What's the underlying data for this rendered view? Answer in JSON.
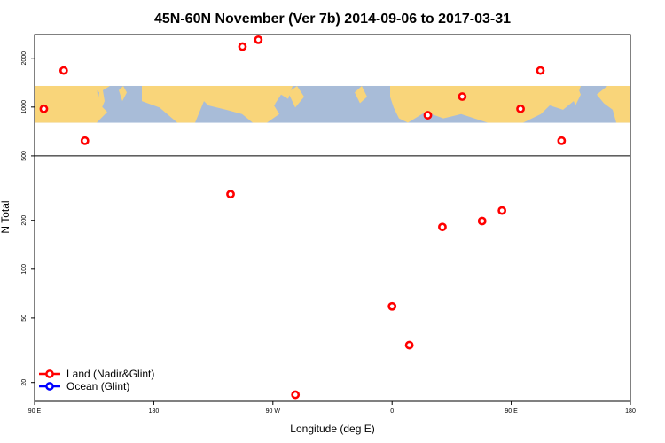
{
  "chart_data": {
    "type": "scatter",
    "title": "45N-60N November (Ver 7b)   2014-09-06 to 2017-03-31",
    "xlabel": "Longitude (deg E)",
    "ylabel": "N Total",
    "x_ticks": [
      {
        "value": 90,
        "label": "90 E"
      },
      {
        "value": 180,
        "label": "180"
      },
      {
        "value": 270,
        "label": "90 W"
      },
      {
        "value": 360,
        "label": "0"
      },
      {
        "value": 450,
        "label": "90 E"
      },
      {
        "value": 540,
        "label": "180"
      }
    ],
    "xlim": [
      90,
      540
    ],
    "y_scale": "log",
    "y_ticks": [
      20,
      50,
      100,
      200,
      500,
      1000,
      2000
    ],
    "ylim": [
      15.3,
      2800
    ],
    "map_band": {
      "ymin": 800,
      "ymax": 1350,
      "ocean_color": "#a8bcd8",
      "land_color": "#f9d57a"
    },
    "split_line": 500,
    "series": [
      {
        "name": "Land (Nadir&Glint)",
        "color": "#ff0000",
        "points": [
          {
            "x": 97,
            "y": 975
          },
          {
            "x": 112,
            "y": 1680
          },
          {
            "x": 128,
            "y": 620
          },
          {
            "x": 238,
            "y": 290
          },
          {
            "x": 247,
            "y": 2360
          },
          {
            "x": 259,
            "y": 2600
          },
          {
            "x": 287,
            "y": 16.8
          },
          {
            "x": 360,
            "y": 59
          },
          {
            "x": 373,
            "y": 34
          },
          {
            "x": 387,
            "y": 890
          },
          {
            "x": 398,
            "y": 182
          },
          {
            "x": 413,
            "y": 1160
          },
          {
            "x": 428,
            "y": 198
          },
          {
            "x": 443,
            "y": 230
          },
          {
            "x": 457,
            "y": 975
          },
          {
            "x": 472,
            "y": 1680
          },
          {
            "x": 488,
            "y": 620
          }
        ]
      },
      {
        "name": "Ocean (Glint)",
        "color": "#0000ff",
        "points": []
      }
    ]
  }
}
